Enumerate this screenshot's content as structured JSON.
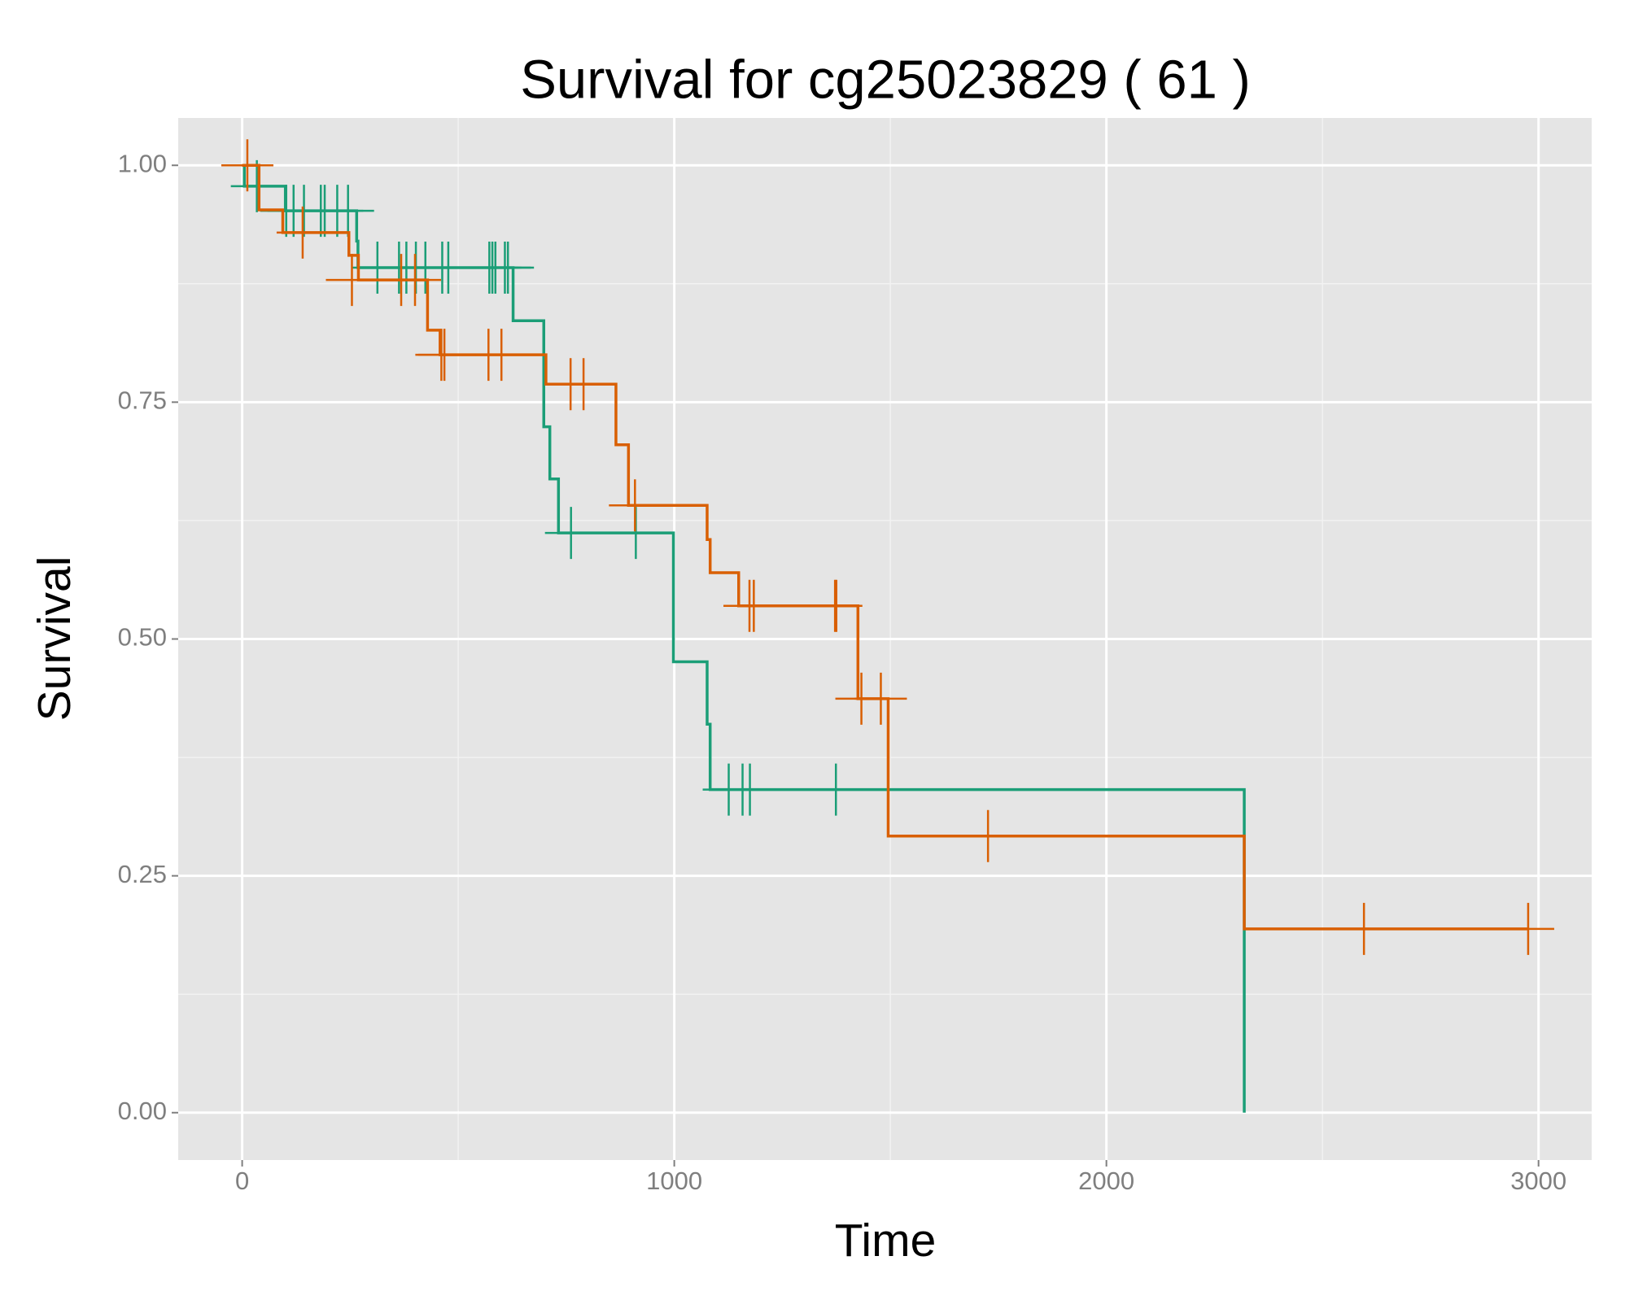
{
  "chart_data": {
    "type": "survival",
    "title": "Survival for  cg25023829 ( 61 )",
    "x_label": "Time",
    "y_label": "Survival",
    "xlim": [
      -148,
      3123
    ],
    "ylim": [
      -0.05,
      1.05
    ],
    "xticks": [
      0,
      1000,
      2000,
      3000
    ],
    "xminor": [
      500,
      1500,
      2500
    ],
    "yticks": [
      {
        "value": 0,
        "label": "0.00"
      },
      {
        "value": 0.25,
        "label": "0.25"
      },
      {
        "value": 0.5,
        "label": "0.50"
      },
      {
        "value": 0.75,
        "label": "0.75"
      },
      {
        "value": 1,
        "label": "1.00"
      }
    ],
    "yminor": [
      0.125,
      0.375,
      0.625,
      0.875
    ],
    "grid": true,
    "series": [
      {
        "color": "#1b9e77",
        "x": [
          0,
          5,
          100,
          265,
          268,
          627,
          698,
          712,
          732,
          998,
          1076,
          1083,
          2319
        ],
        "values": [
          1,
          0.978,
          0.952,
          0.92,
          0.892,
          0.836,
          0.724,
          0.669,
          0.612,
          0.476,
          0.41,
          0.341,
          0
        ],
        "censor_x": [
          34,
          102,
          119,
          143,
          182,
          191,
          220,
          245,
          313,
          363,
          380,
          402,
          424,
          463,
          477,
          572,
          579,
          586,
          608,
          615,
          761,
          911,
          1126,
          1158,
          1175,
          1374
        ],
        "censor_values": [
          0.978,
          0.952,
          0.952,
          0.952,
          0.952,
          0.952,
          0.952,
          0.952,
          0.892,
          0.892,
          0.892,
          0.892,
          0.892,
          0.892,
          0.892,
          0.892,
          0.892,
          0.892,
          0.892,
          0.892,
          0.612,
          0.612,
          0.341,
          0.341,
          0.341,
          0.341
        ]
      },
      {
        "color": "#d95f02",
        "x": [
          0,
          39,
          94,
          247,
          269,
          429,
          458,
          703,
          865,
          894,
          1076,
          1083,
          1149,
          1425,
          1495,
          2319,
          2976
        ],
        "values": [
          1,
          0.953,
          0.929,
          0.905,
          0.879,
          0.826,
          0.8,
          0.769,
          0.705,
          0.641,
          0.605,
          0.57,
          0.535,
          0.437,
          0.292,
          0.194,
          0.194
        ],
        "censor_x": [
          12,
          140,
          254,
          368,
          400,
          461,
          468,
          570,
          600,
          760,
          790,
          909,
          1174,
          1184,
          1372,
          1375,
          1433,
          1478,
          1726,
          2596,
          2976
        ],
        "censor_values": [
          1,
          0.929,
          0.879,
          0.879,
          0.879,
          0.8,
          0.8,
          0.8,
          0.8,
          0.769,
          0.769,
          0.641,
          0.535,
          0.535,
          0.535,
          0.535,
          0.437,
          0.437,
          0.292,
          0.194,
          0.194
        ]
      }
    ]
  }
}
